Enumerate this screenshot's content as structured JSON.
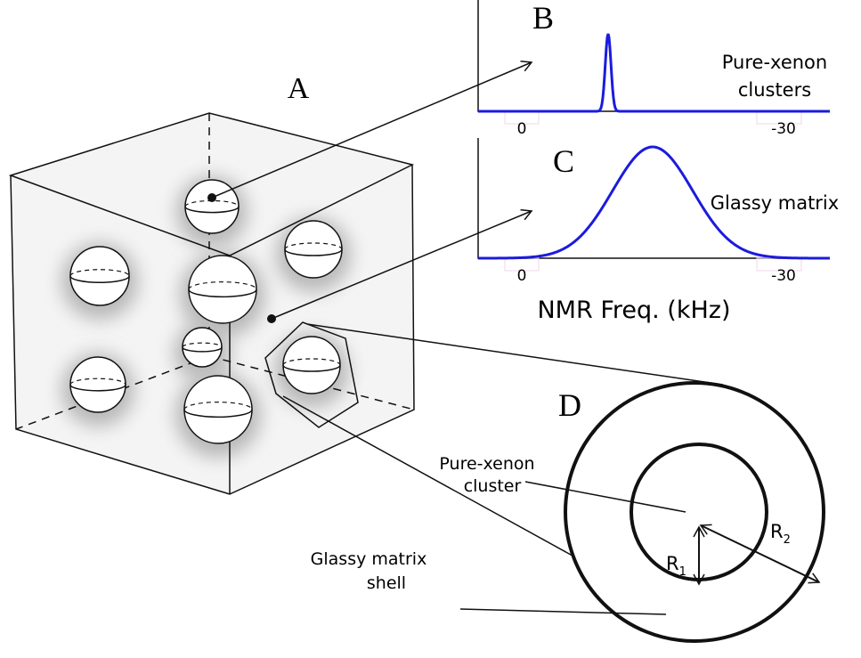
{
  "panel_a": {
    "label": "A"
  },
  "panel_b": {
    "label": "B",
    "caption": [
      "Pure-xenon",
      "clusters"
    ],
    "ticks": [
      "0",
      "-30"
    ]
  },
  "panel_c": {
    "label": "C",
    "caption": "Glassy matrix",
    "ticks": [
      "0",
      "-30"
    ],
    "axis_label": "NMR Freq. (kHz)"
  },
  "panel_d": {
    "label": "D",
    "cluster_label": [
      "Pure-xenon",
      "cluster"
    ],
    "shell_label": [
      "Glassy matrix",
      "shell"
    ],
    "r1": {
      "main": "R",
      "sub": "1"
    },
    "r2": {
      "main": "R",
      "sub": "2"
    }
  }
}
